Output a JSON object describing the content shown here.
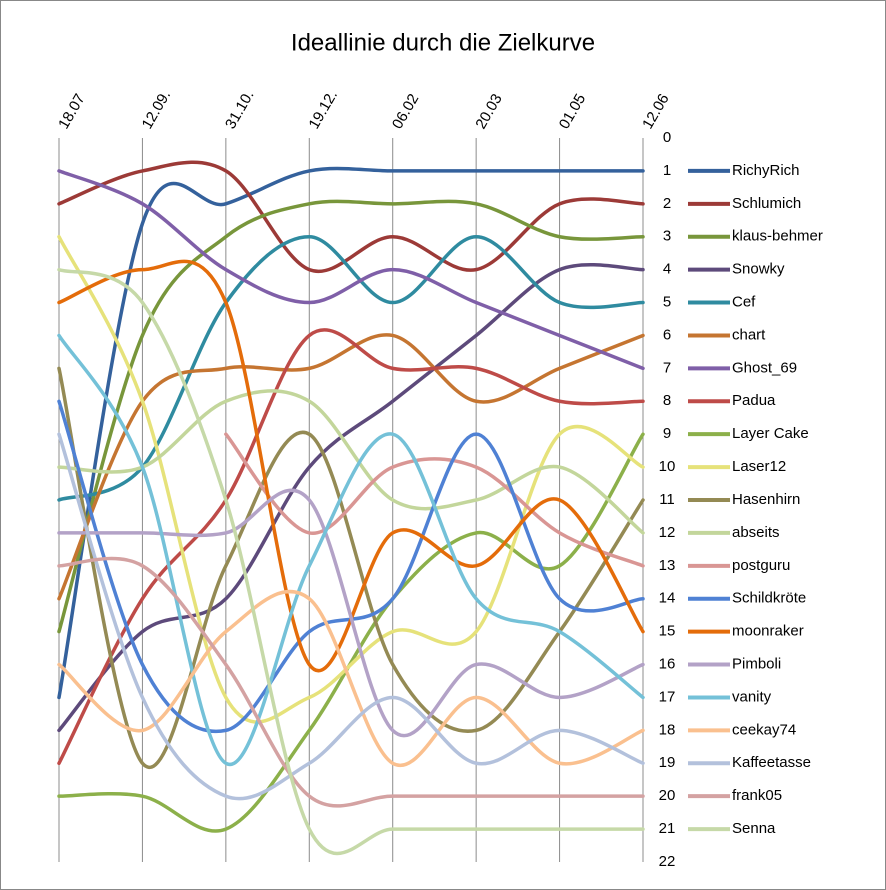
{
  "chart_data": {
    "type": "line",
    "title": "Ideallinie durch die Zielkurve",
    "categories": [
      "18.07",
      "12.09.",
      "31.10.",
      "19.12.",
      "06.02",
      "20.03",
      "01.05",
      "12.06"
    ],
    "ylim": [
      22,
      0
    ],
    "yticks": [
      0,
      1,
      2,
      3,
      4,
      5,
      6,
      7,
      8,
      9,
      10,
      11,
      12,
      13,
      14,
      15,
      16,
      17,
      18,
      19,
      20,
      21,
      22
    ],
    "smooth": true,
    "grid": true,
    "legend": "right",
    "series": [
      {
        "name": "RichyRich",
        "color": "#34619c",
        "values": [
          17,
          2.6,
          2,
          1,
          1,
          1,
          1,
          1
        ]
      },
      {
        "name": "Schlumich",
        "color": "#9c3a37",
        "values": [
          2,
          1,
          1,
          4,
          3,
          4,
          2,
          2
        ]
      },
      {
        "name": "klaus-behmer",
        "color": "#78963b",
        "values": [
          15,
          6,
          3,
          2,
          2,
          2,
          3,
          3
        ]
      },
      {
        "name": "Snowky",
        "color": "#5d4a7b",
        "values": [
          18,
          15,
          14,
          10,
          8,
          6,
          4,
          4
        ]
      },
      {
        "name": "Cef",
        "color": "#2f8ba0",
        "values": [
          11,
          10,
          5,
          3,
          5,
          3,
          5,
          5
        ]
      },
      {
        "name": "chart",
        "color": "#c57531",
        "values": [
          14,
          8,
          7,
          7,
          6,
          8,
          7,
          6
        ]
      },
      {
        "name": "Ghost_69",
        "color": "#7f5fa8",
        "values": [
          1,
          2,
          4,
          5,
          4,
          5,
          6,
          7
        ]
      },
      {
        "name": "Padua",
        "color": "#be4b48",
        "values": [
          19,
          14,
          11,
          6,
          7,
          7,
          8,
          8
        ]
      },
      {
        "name": "Layer Cake",
        "color": "#8cb04a",
        "values": [
          20,
          20,
          21,
          18,
          14,
          12,
          13,
          9
        ]
      },
      {
        "name": "Laser12",
        "color": "#e6e27a",
        "values": [
          3,
          8,
          17,
          17,
          15,
          15,
          9,
          10
        ]
      },
      {
        "name": "Hasenhirn",
        "color": "#948a54",
        "values": [
          7,
          19,
          13,
          9,
          16,
          18,
          15,
          11
        ]
      },
      {
        "name": "abseits",
        "color": "#c3d69b",
        "values": [
          10,
          10,
          8,
          8,
          11,
          11,
          10,
          12
        ]
      },
      {
        "name": "postguru",
        "color": "#d99694",
        "values": [
          null,
          null,
          9,
          12,
          10,
          10,
          12,
          13
        ]
      },
      {
        "name": "Schildkröte",
        "color": "#4f81d4",
        "values": [
          8,
          16,
          18,
          15,
          14,
          9,
          14,
          14
        ]
      },
      {
        "name": "moonraker",
        "color": "#e46c0a",
        "values": [
          5,
          4,
          5,
          16,
          12,
          13,
          11,
          15
        ]
      },
      {
        "name": "Pimboli",
        "color": "#b3a2c7",
        "values": [
          12,
          12,
          12,
          11,
          18,
          16,
          17,
          16
        ]
      },
      {
        "name": "vanity",
        "color": "#74c1d8",
        "values": [
          6,
          10,
          19,
          13,
          9,
          14,
          15,
          17
        ]
      },
      {
        "name": "ceekay74",
        "color": "#fac08f",
        "values": [
          16,
          18,
          15,
          14,
          19,
          17,
          19,
          18
        ]
      },
      {
        "name": "Kaffeetasse",
        "color": "#b3c1dc",
        "values": [
          9,
          17,
          20,
          19,
          17,
          19,
          18,
          19
        ]
      },
      {
        "name": "frank05",
        "color": "#d4a2a2",
        "values": [
          13,
          13,
          16,
          20,
          20,
          20,
          20,
          20
        ]
      },
      {
        "name": "Senna",
        "color": "#c6d9a8",
        "values": [
          4,
          5,
          11,
          21,
          21,
          21,
          21,
          21
        ]
      }
    ]
  }
}
